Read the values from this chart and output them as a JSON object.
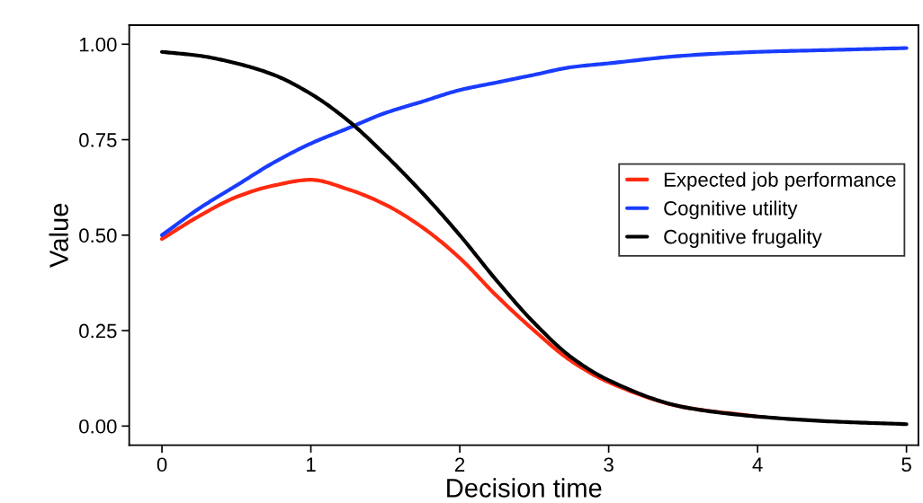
{
  "chart_data": {
    "type": "line",
    "xlabel": "Decision time",
    "ylabel": "Value",
    "x": [
      0,
      0.25,
      0.5,
      0.75,
      1,
      1.25,
      1.5,
      1.75,
      2,
      2.25,
      2.5,
      2.75,
      3,
      3.5,
      4,
      4.5,
      5
    ],
    "series": [
      {
        "name": "Expected job performance",
        "color": "#ff2a10",
        "values": [
          0.49,
          0.55,
          0.6,
          0.63,
          0.645,
          0.62,
          0.58,
          0.52,
          0.44,
          0.34,
          0.25,
          0.17,
          0.115,
          0.05,
          0.025,
          null,
          null
        ]
      },
      {
        "name": "Cognitive utility",
        "color": "#1a3cff",
        "values": [
          0.5,
          0.57,
          0.63,
          0.69,
          0.74,
          0.78,
          0.82,
          0.85,
          0.88,
          0.9,
          0.92,
          0.94,
          0.95,
          0.97,
          0.98,
          0.985,
          0.99
        ]
      },
      {
        "name": "Cognitive frugality",
        "color": "#000000",
        "values": [
          0.98,
          0.97,
          0.95,
          0.92,
          0.87,
          0.8,
          0.71,
          0.61,
          0.5,
          0.38,
          0.27,
          0.18,
          0.12,
          0.05,
          0.025,
          0.012,
          0.005
        ]
      }
    ],
    "xlim": [
      -0.22,
      5.08
    ],
    "ylim": [
      -0.05,
      1.05
    ],
    "xticks": [
      0,
      1,
      2,
      3,
      4,
      5
    ],
    "yticks": [
      {
        "value": 0,
        "label": "0.00"
      },
      {
        "value": 0.25,
        "label": "0.25"
      },
      {
        "value": 0.5,
        "label": "0.50"
      },
      {
        "value": 0.75,
        "label": "0.75"
      },
      {
        "value": 1,
        "label": "1.00"
      }
    ],
    "grid": false,
    "legend": "right",
    "marker": "none",
    "line_style": "solid"
  }
}
